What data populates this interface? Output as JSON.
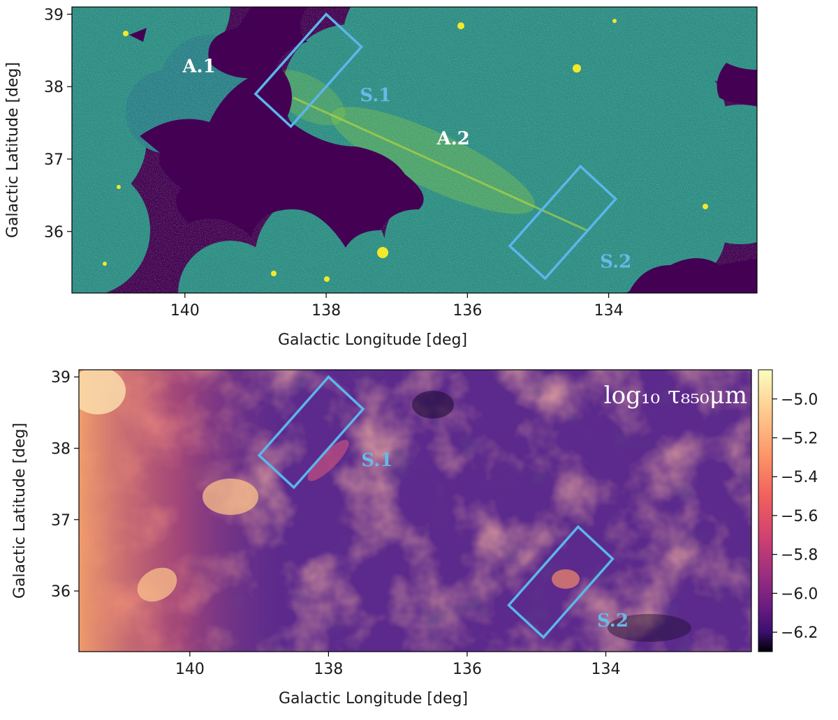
{
  "chart_data": [
    {
      "type": "heatmap",
      "panel": "top",
      "xlabel": "Galactic Longitude [deg]",
      "ylabel": "Galactic Latitude [deg]",
      "xlim": [
        141.6,
        131.9
      ],
      "ylim": [
        35.15,
        39.1
      ],
      "xticks": [
        140,
        138,
        136,
        134
      ],
      "xtick_labels": [
        "140",
        "138",
        "136",
        "134"
      ],
      "yticks": [
        36,
        37,
        38,
        39
      ],
      "ytick_labels": [
        "36",
        "37",
        "38",
        "39"
      ],
      "colormap": "viridis",
      "background_color": "#440154",
      "field_color": "#2a8a8a",
      "regions": [
        {
          "label": "A.1",
          "x": 139.8,
          "y": 38.2,
          "color": "#ffffff"
        },
        {
          "label": "A.2",
          "x": 136.2,
          "y": 37.2,
          "color": "#ffffff"
        },
        {
          "label": "S.1",
          "x": 137.3,
          "y": 37.8,
          "color": "#6ab8e8"
        },
        {
          "label": "S.2",
          "x": 133.9,
          "y": 35.5,
          "color": "#6ab8e8"
        }
      ],
      "boxes": [
        {
          "name": "S.1",
          "corners": [
            [
              139.0,
              37.9
            ],
            [
              138.0,
              39.0
            ],
            [
              137.5,
              38.55
            ],
            [
              138.5,
              37.45
            ]
          ],
          "color": "#5bb6ec"
        },
        {
          "name": "S.2",
          "corners": [
            [
              135.4,
              35.8
            ],
            [
              134.4,
              36.9
            ],
            [
              133.9,
              36.45
            ],
            [
              134.9,
              35.35
            ]
          ],
          "color": "#5bb6ec"
        }
      ]
    },
    {
      "type": "heatmap",
      "panel": "bottom",
      "xlabel": "Galactic Longitude [deg]",
      "ylabel": "Galactic Latitude [deg]",
      "xlim": [
        141.6,
        131.9
      ],
      "ylim": [
        35.15,
        39.1
      ],
      "xticks": [
        140,
        138,
        136,
        134
      ],
      "xtick_labels": [
        "140",
        "138",
        "136",
        "134"
      ],
      "yticks": [
        36,
        37,
        38,
        39
      ],
      "ytick_labels": [
        "36",
        "37",
        "38",
        "39"
      ],
      "colormap": "magma",
      "colorbar": {
        "label": "log₁₀ τ₈₅₀μm",
        "range": [
          -6.3,
          -4.85
        ],
        "ticks": [
          -5.0,
          -5.2,
          -5.4,
          -5.6,
          -5.8,
          -6.0,
          -6.2
        ],
        "tick_labels": [
          "−5.0",
          "−5.2",
          "−5.4",
          "−5.6",
          "−5.8",
          "−6.0",
          "−6.2"
        ]
      },
      "regions": [
        {
          "label": "S.1",
          "x": 137.3,
          "y": 37.75,
          "color": "#6ab8e8"
        },
        {
          "label": "S.2",
          "x": 133.9,
          "y": 35.5,
          "color": "#6ab8e8"
        }
      ],
      "boxes": [
        {
          "name": "S.1",
          "corners": [
            [
              139.0,
              37.9
            ],
            [
              138.0,
              39.0
            ],
            [
              137.5,
              38.55
            ],
            [
              138.5,
              37.45
            ]
          ],
          "color": "#5bb6ec"
        },
        {
          "name": "S.2",
          "corners": [
            [
              135.4,
              35.8
            ],
            [
              134.4,
              36.9
            ],
            [
              133.9,
              36.45
            ],
            [
              134.9,
              35.35
            ]
          ],
          "color": "#5bb6ec"
        }
      ]
    }
  ]
}
